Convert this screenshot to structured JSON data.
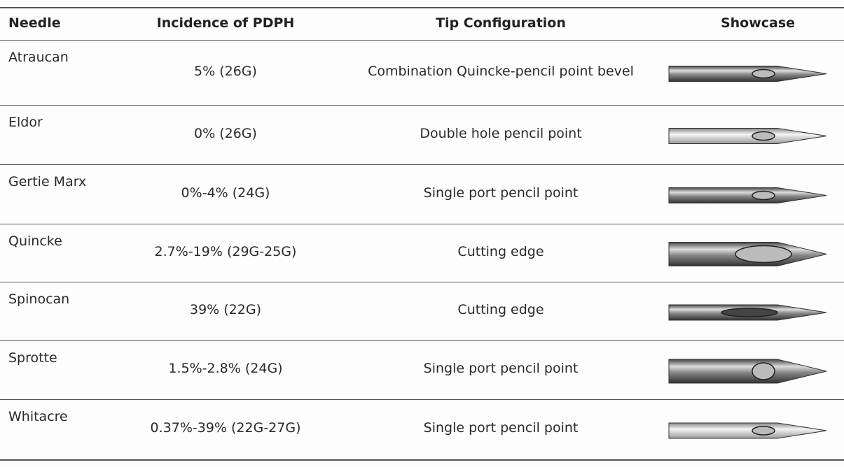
{
  "table": {
    "header": [
      "Needle",
      "Incidence of PDPH",
      "Tip Configuration",
      "Showcase"
    ],
    "rows": [
      [
        "Atraucan",
        "5% (26G)",
        "Combination Quincke-pencil point bevel"
      ],
      [
        "Eldor",
        "0% (26G)",
        "Double hole pencil point"
      ],
      [
        "Gertie Marx",
        "0%-4% (24G)",
        "Single port pencil point"
      ],
      [
        "Quincke",
        "2.7%-19% (29G-25G)",
        "Cutting edge"
      ],
      [
        "Spinocan",
        "39% (22G)",
        "Cutting edge"
      ],
      [
        "Sprotte",
        "1.5%-2.8% (24G)",
        "Single port pencil point"
      ],
      [
        "Whitacre",
        "0.37%-39% (22G-27G)",
        "Single port pencil point"
      ]
    ]
  }
}
